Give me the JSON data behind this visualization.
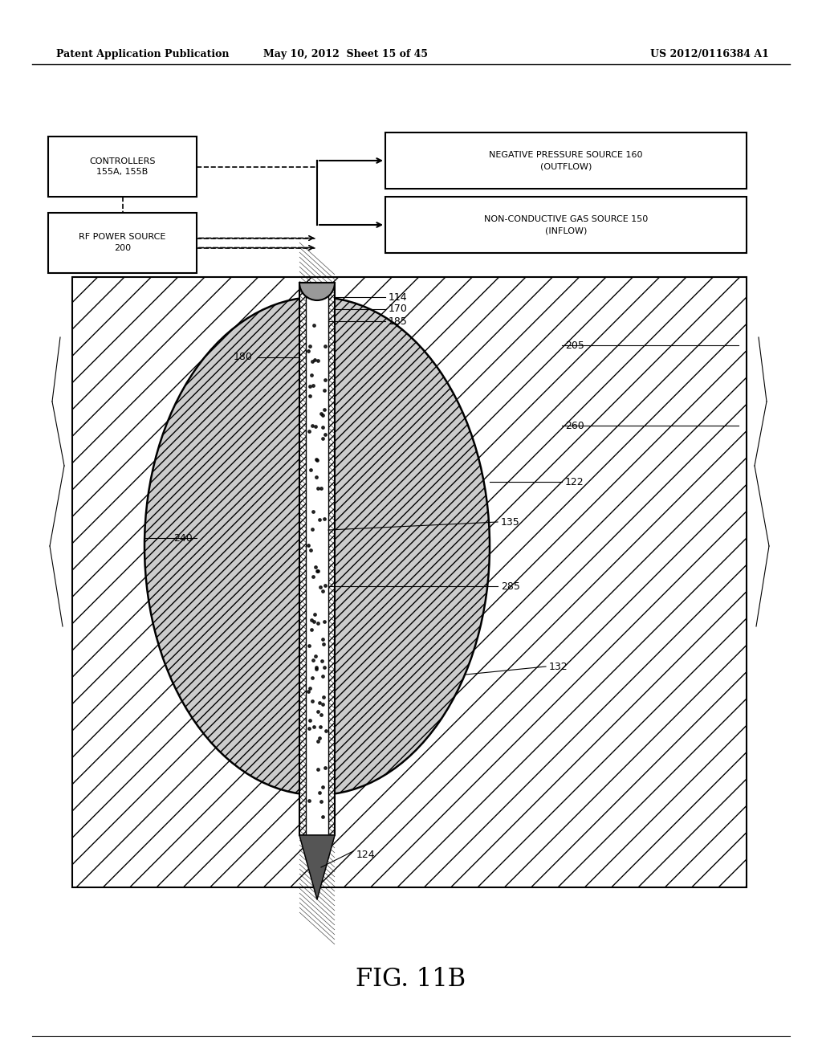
{
  "header_left": "Patent Application Publication",
  "header_mid": "May 10, 2012  Sheet 15 of 45",
  "header_right": "US 2012/0116384 A1",
  "figure_label": "FIG. 11B",
  "box_controllers": "CONTROLLERS\n155A, 155B",
  "box_rf": "RF POWER SOURCE\n200",
  "box_neg_pressure": "NEGATIVE PRESSURE SOURCE 160\n(OUTFLOW)",
  "box_gas": "NON-CONDUCTIVE GAS SOURCE 150\n(INFLOW)",
  "bg_color": "#ffffff"
}
